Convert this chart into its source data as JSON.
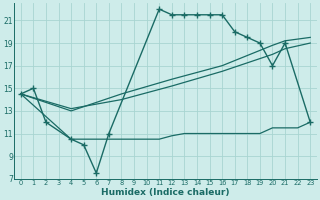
{
  "xlabel": "Humidex (Indice chaleur)",
  "bg_color": "#ceecea",
  "grid_color": "#a8d5d1",
  "line_color": "#1a6b65",
  "xlim": [
    -0.5,
    23.5
  ],
  "ylim": [
    7,
    22.5
  ],
  "xticks": [
    0,
    1,
    2,
    3,
    4,
    5,
    6,
    7,
    8,
    9,
    10,
    11,
    12,
    13,
    14,
    15,
    16,
    17,
    18,
    19,
    20,
    21,
    22,
    23
  ],
  "yticks": [
    7,
    9,
    11,
    13,
    15,
    17,
    19,
    21
  ],
  "main_x": [
    0,
    1,
    2,
    4,
    5,
    6,
    7,
    11,
    12,
    13,
    14,
    15,
    16,
    17,
    18,
    19,
    20,
    21,
    23
  ],
  "main_y": [
    14.5,
    15.0,
    12.0,
    10.5,
    10.0,
    7.5,
    11.0,
    22.0,
    21.5,
    21.5,
    21.5,
    21.5,
    21.5,
    20.0,
    19.5,
    19.0,
    17.0,
    19.0,
    12.0
  ],
  "base_x": [
    0,
    4,
    5,
    6,
    7,
    8,
    9,
    10,
    11,
    12,
    13,
    14,
    15,
    16,
    17,
    18,
    19,
    20,
    21,
    22,
    23
  ],
  "base_y": [
    14.5,
    10.5,
    10.5,
    10.5,
    10.5,
    10.5,
    10.5,
    10.5,
    10.5,
    10.8,
    11.0,
    11.0,
    11.0,
    11.0,
    11.0,
    11.0,
    11.0,
    11.5,
    11.5,
    11.5,
    12.0
  ],
  "diag1_x": [
    0,
    4,
    8,
    12,
    16,
    20,
    21,
    23
  ],
  "diag1_y": [
    14.5,
    13.2,
    14.0,
    15.2,
    16.5,
    18.0,
    18.5,
    19.0
  ],
  "diag2_x": [
    0,
    4,
    8,
    12,
    16,
    20,
    21,
    23
  ],
  "diag2_y": [
    14.5,
    13.0,
    14.5,
    15.8,
    17.0,
    18.8,
    19.2,
    19.5
  ]
}
